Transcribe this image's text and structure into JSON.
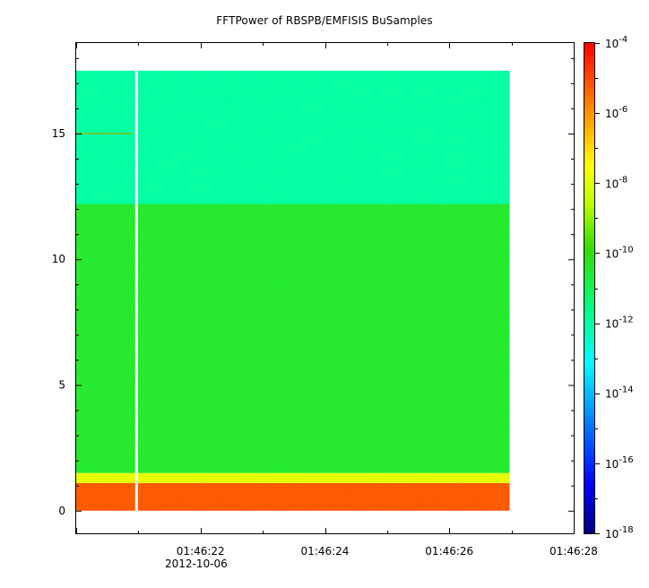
{
  "chart_data": {
    "type": "heatmap",
    "title": "FFTPower of RBSPB/EMFISIS  BuSamples",
    "xlabel": "",
    "ylabel": "",
    "x_ticks": [
      "01:46:22",
      "01:46:24",
      "01:46:26",
      "01:46:28"
    ],
    "x_tick_seconds": [
      22,
      24,
      26,
      28
    ],
    "x_date_label": "2012-10-06",
    "xlim_seconds": [
      20.0,
      28.0
    ],
    "data_x_range_seconds": [
      20.0,
      26.97
    ],
    "gap_at_seconds": 20.97,
    "y_ticks": [
      0,
      5,
      10,
      15
    ],
    "ylim": [
      -0.9,
      18.6
    ],
    "data_y_range": [
      0,
      17.5
    ],
    "bands": [
      {
        "y_from": 0.0,
        "y_to": 1.1,
        "log10_power": -5.2
      },
      {
        "y_from": 1.1,
        "y_to": 1.5,
        "log10_power": -8.0
      },
      {
        "y_from": 1.5,
        "y_to": 12.2,
        "log10_power": -10.5
      },
      {
        "y_from": 12.2,
        "y_to": 17.5,
        "log10_power": -12.0
      }
    ],
    "artifact_line": {
      "y": 15.0,
      "x_from_seconds": 20.0,
      "x_to_seconds": 20.9
    },
    "colorbar": {
      "scale": "log",
      "range_exp": [
        -18,
        -4
      ],
      "tick_exponents": [
        -4,
        -6,
        -8,
        -10,
        -12,
        -14,
        -16,
        -18
      ],
      "tick_base": "10"
    }
  }
}
